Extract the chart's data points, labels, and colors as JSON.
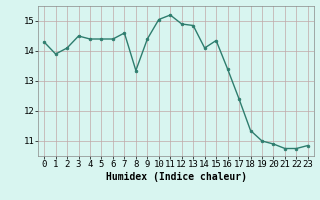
{
  "x": [
    0,
    1,
    2,
    3,
    4,
    5,
    6,
    7,
    8,
    9,
    10,
    11,
    12,
    13,
    14,
    15,
    16,
    17,
    18,
    19,
    20,
    21,
    22,
    23
  ],
  "y": [
    14.3,
    13.9,
    14.1,
    14.5,
    14.4,
    14.4,
    14.4,
    14.6,
    13.35,
    14.4,
    15.05,
    15.2,
    14.9,
    14.85,
    14.1,
    14.35,
    13.4,
    12.4,
    11.35,
    11.0,
    10.9,
    10.75,
    10.75,
    10.85
  ],
  "line_color": "#2e7d6e",
  "marker": "o",
  "marker_size": 2.0,
  "bg_color": "#d8f5f0",
  "grid_color": "#c0a8a8",
  "xlabel": "Humidex (Indice chaleur)",
  "ylim": [
    10.5,
    15.5
  ],
  "xlim": [
    -0.5,
    23.5
  ],
  "yticks": [
    11,
    12,
    13,
    14,
    15
  ],
  "xticks": [
    0,
    1,
    2,
    3,
    4,
    5,
    6,
    7,
    8,
    9,
    10,
    11,
    12,
    13,
    14,
    15,
    16,
    17,
    18,
    19,
    20,
    21,
    22,
    23
  ],
  "xlabel_fontsize": 7,
  "tick_fontsize": 6.5,
  "line_width": 1.0
}
